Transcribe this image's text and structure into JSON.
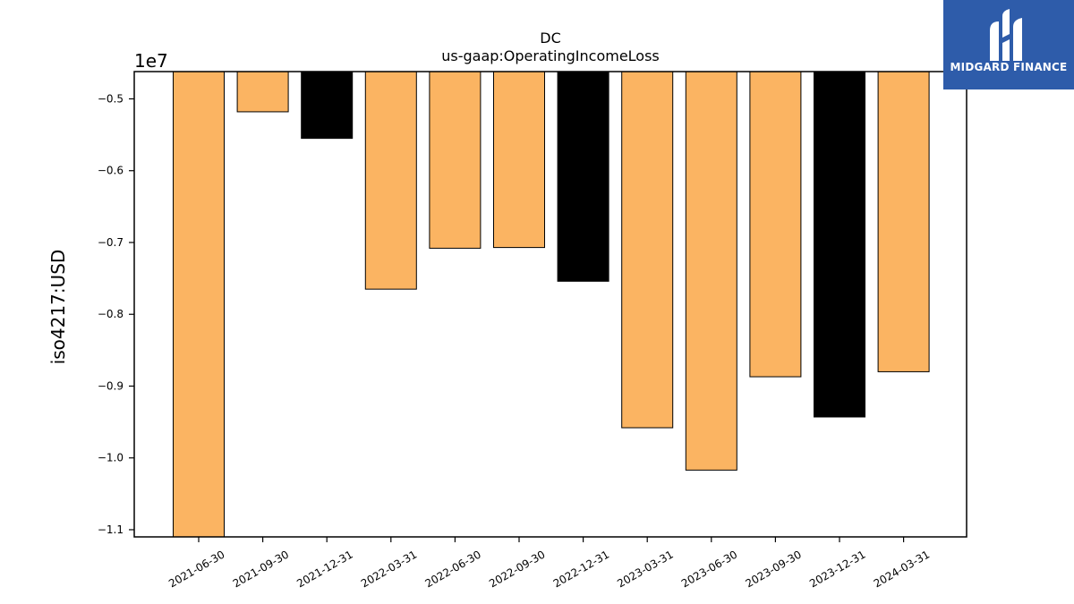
{
  "chart_data": {
    "type": "bar",
    "title": "DC",
    "subtitle": "us-gaap:OperatingIncomeLoss",
    "ylabel": "iso4217:USD",
    "xlabel": "",
    "offset_label": "1e7",
    "categories": [
      "2021-06-30",
      "2021-09-30",
      "2021-12-31",
      "2022-03-31",
      "2022-06-30",
      "2022-09-30",
      "2022-12-31",
      "2023-03-31",
      "2023-06-30",
      "2023-09-30",
      "2023-12-31",
      "2024-03-31"
    ],
    "values": [
      -11100000,
      -5180000,
      -5550000,
      -7650000,
      -7080000,
      -7070000,
      -7540000,
      -9580000,
      -10170000,
      -8870000,
      -9430000,
      -8800000
    ],
    "bar_colors": [
      "#fbb462",
      "#fbb462",
      "#000000",
      "#fbb462",
      "#fbb462",
      "#fbb462",
      "#000000",
      "#fbb462",
      "#fbb462",
      "#fbb462",
      "#000000",
      "#fbb462"
    ],
    "ylim": [
      -11100000,
      -4620000
    ],
    "yticks": [
      -5000000,
      -6000000,
      -7000000,
      -8000000,
      -9000000,
      -10000000,
      -11000000
    ],
    "ytick_labels": [
      "−0.5",
      "−0.6",
      "−0.7",
      "−0.8",
      "−0.9",
      "−1.0",
      "−1.1"
    ],
    "grid": false
  },
  "logo": {
    "text": "MIDGARD FINANCE",
    "color": "#2e5caa"
  }
}
